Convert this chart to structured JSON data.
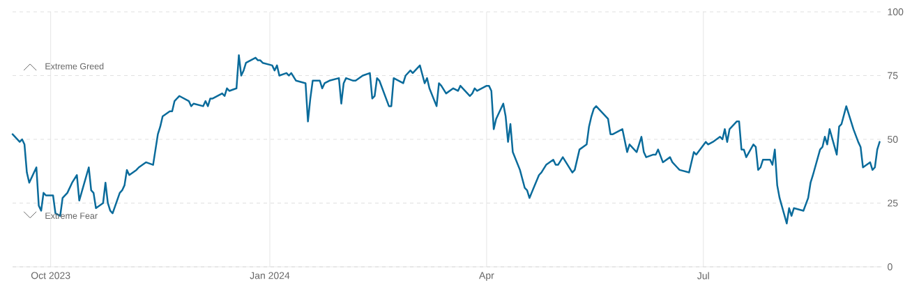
{
  "chart_data": {
    "type": "line",
    "color": "#0a6b9b",
    "grid": true,
    "xlim": [
      "2023-09-15",
      "2024-09-14"
    ],
    "ylim": [
      0,
      100
    ],
    "xticks": [
      {
        "value": "2023-10-01",
        "label": "Oct 2023"
      },
      {
        "value": "2024-01-01",
        "label": "Jan 2024"
      },
      {
        "value": "2024-04-01",
        "label": "Apr"
      },
      {
        "value": "2024-07-01",
        "label": "Jul"
      }
    ],
    "yticks": [
      0,
      25,
      50,
      75,
      100
    ],
    "annotations": [
      "Extreme Greed",
      "Extreme Fear"
    ],
    "x": [
      "2023-09-15",
      "2023-09-18",
      "2023-09-19",
      "2023-09-20",
      "2023-09-21",
      "2023-09-22",
      "2023-09-25",
      "2023-09-26",
      "2023-09-27",
      "2023-09-28",
      "2023-09-29",
      "2023-10-02",
      "2023-10-03",
      "2023-10-05",
      "2023-10-06",
      "2023-10-08",
      "2023-10-10",
      "2023-10-12",
      "2023-10-13",
      "2023-10-17",
      "2023-10-18",
      "2023-10-19",
      "2023-10-20",
      "2023-10-23",
      "2023-10-24",
      "2023-10-25",
      "2023-10-26",
      "2023-10-27",
      "2023-10-30",
      "2023-10-31",
      "2023-11-01",
      "2023-11-02",
      "2023-11-03",
      "2023-11-06",
      "2023-11-07",
      "2023-11-10",
      "2023-11-13",
      "2023-11-15",
      "2023-11-16",
      "2023-11-17",
      "2023-11-20",
      "2023-11-21",
      "2023-11-22",
      "2023-11-24",
      "2023-11-28",
      "2023-11-29",
      "2023-11-30",
      "2023-12-04",
      "2023-12-05",
      "2023-12-06",
      "2023-12-07",
      "2023-12-08",
      "2023-12-12",
      "2023-12-13",
      "2023-12-14",
      "2023-12-15",
      "2023-12-18",
      "2023-12-19",
      "2023-12-20",
      "2023-12-21",
      "2023-12-22",
      "2023-12-26",
      "2023-12-27",
      "2023-12-28",
      "2023-12-29",
      "2024-01-02",
      "2024-01-03",
      "2024-01-04",
      "2024-01-05",
      "2024-01-08",
      "2024-01-09",
      "2024-01-10",
      "2024-01-12",
      "2024-01-16",
      "2024-01-17",
      "2024-01-18",
      "2024-01-19",
      "2024-01-22",
      "2024-01-23",
      "2024-01-24",
      "2024-01-26",
      "2024-01-30",
      "2024-01-31",
      "2024-02-01",
      "2024-02-02",
      "2024-02-05",
      "2024-02-06",
      "2024-02-09",
      "2024-02-12",
      "2024-02-13",
      "2024-02-14",
      "2024-02-15",
      "2024-02-16",
      "2024-02-20",
      "2024-02-21",
      "2024-02-22",
      "2024-02-26",
      "2024-02-27",
      "2024-02-29",
      "2024-03-01",
      "2024-03-04",
      "2024-03-06",
      "2024-03-07",
      "2024-03-08",
      "2024-03-11",
      "2024-03-12",
      "2024-03-13",
      "2024-03-15",
      "2024-03-18",
      "2024-03-20",
      "2024-03-21",
      "2024-03-22",
      "2024-03-25",
      "2024-03-26",
      "2024-03-27",
      "2024-03-28",
      "2024-04-01",
      "2024-04-02",
      "2024-04-03",
      "2024-04-04",
      "2024-04-05",
      "2024-04-08",
      "2024-04-09",
      "2024-04-10",
      "2024-04-11",
      "2024-04-12",
      "2024-04-15",
      "2024-04-17",
      "2024-04-18",
      "2024-04-19",
      "2024-04-23",
      "2024-04-24",
      "2024-04-26",
      "2024-04-29",
      "2024-04-30",
      "2024-05-01",
      "2024-05-03",
      "2024-05-07",
      "2024-05-08",
      "2024-05-10",
      "2024-05-13",
      "2024-05-14",
      "2024-05-15",
      "2024-05-16",
      "2024-05-17",
      "2024-05-22",
      "2024-05-23",
      "2024-05-24",
      "2024-05-28",
      "2024-05-30",
      "2024-05-31",
      "2024-06-03",
      "2024-06-05",
      "2024-06-06",
      "2024-06-07",
      "2024-06-10",
      "2024-06-11",
      "2024-06-12",
      "2024-06-14",
      "2024-06-17",
      "2024-06-18",
      "2024-06-20",
      "2024-06-21",
      "2024-06-25",
      "2024-06-27",
      "2024-06-28",
      "2024-07-02",
      "2024-07-03",
      "2024-07-05",
      "2024-07-08",
      "2024-07-09",
      "2024-07-10",
      "2024-07-11",
      "2024-07-12",
      "2024-07-15",
      "2024-07-16",
      "2024-07-17",
      "2024-07-18",
      "2024-07-19",
      "2024-07-22",
      "2024-07-23",
      "2024-07-24",
      "2024-07-25",
      "2024-07-26",
      "2024-07-29",
      "2024-07-30",
      "2024-07-31",
      "2024-08-01",
      "2024-08-02",
      "2024-08-05",
      "2024-08-06",
      "2024-08-07",
      "2024-08-08",
      "2024-08-12",
      "2024-08-14",
      "2024-08-15",
      "2024-08-16",
      "2024-08-19",
      "2024-08-20",
      "2024-08-21",
      "2024-08-22",
      "2024-08-23",
      "2024-08-26",
      "2024-08-27",
      "2024-08-28",
      "2024-08-30",
      "2024-09-02",
      "2024-09-04",
      "2024-09-05",
      "2024-09-06",
      "2024-09-09",
      "2024-09-10",
      "2024-09-11",
      "2024-09-12",
      "2024-09-13"
    ],
    "values": [
      52,
      49,
      50,
      48,
      37,
      33,
      39,
      24,
      22,
      29,
      28,
      28,
      21,
      20,
      27,
      29,
      33,
      36,
      26,
      39,
      30,
      29,
      23,
      25,
      33,
      25,
      22,
      21,
      29,
      30,
      32,
      38,
      36,
      38,
      39,
      41,
      40,
      52,
      55,
      59,
      61,
      61,
      65,
      67,
      65,
      63,
      64,
      63,
      65,
      63,
      66,
      66,
      68,
      67,
      70,
      69,
      70,
      83,
      75,
      77,
      80,
      82,
      81,
      81,
      80,
      79,
      77,
      79,
      75,
      76,
      75,
      76,
      73,
      72,
      57,
      66,
      73,
      73,
      70,
      72,
      73,
      74,
      64,
      72,
      74,
      73,
      73,
      75,
      76,
      66,
      67,
      74,
      73,
      63,
      63,
      74,
      72,
      75,
      77,
      76,
      79,
      72,
      74,
      70,
      63,
      72,
      71,
      68,
      70,
      69,
      71,
      70,
      67,
      68,
      70,
      69,
      71,
      71,
      69,
      54,
      58,
      64,
      59,
      49,
      56,
      45,
      38,
      31,
      30,
      27,
      36,
      37,
      40,
      42,
      40,
      40,
      43,
      37,
      38,
      46,
      48,
      55,
      59,
      62,
      63,
      58,
      52,
      52,
      54,
      45,
      48,
      45,
      51,
      45,
      43,
      44,
      44,
      46,
      41,
      43,
      41,
      39,
      38,
      37,
      45,
      44,
      49,
      48,
      49,
      51,
      50,
      54,
      49,
      54,
      57,
      57,
      46,
      46,
      43,
      48,
      47,
      38,
      39,
      42,
      42,
      40,
      46,
      32,
      27,
      17,
      23,
      20,
      23,
      22,
      27,
      33,
      36,
      46,
      47,
      51,
      48,
      54,
      44,
      55,
      56,
      63,
      54,
      49,
      47,
      39,
      41,
      38,
      39,
      46,
      49
    ]
  }
}
